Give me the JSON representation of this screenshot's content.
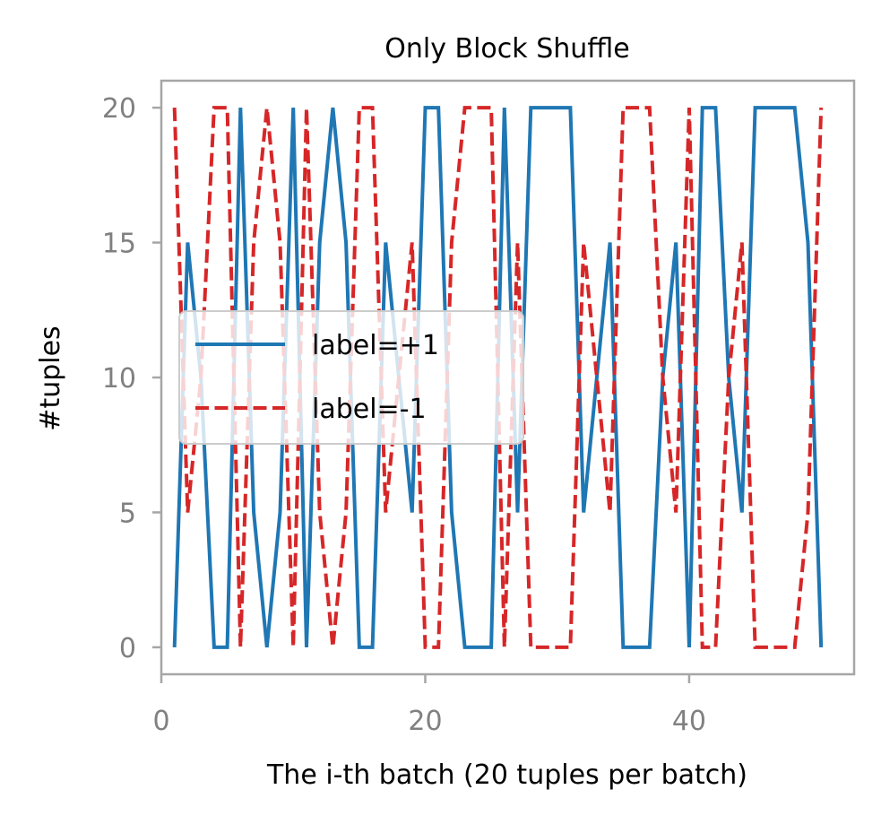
{
  "chart_data": {
    "type": "line",
    "title": "Only Block Shuffle",
    "xlabel": "The i-th batch (20 tuples per batch)",
    "ylabel": "#tuples",
    "xlim": [
      0,
      52.5
    ],
    "ylim": [
      -1,
      21
    ],
    "xticks": [
      0,
      20,
      40
    ],
    "yticks": [
      0,
      5,
      10,
      15,
      20
    ],
    "grid": false,
    "legend_position": "center-left",
    "x": [
      1,
      2,
      3,
      4,
      5,
      6,
      7,
      8,
      9,
      10,
      11,
      12,
      13,
      14,
      15,
      16,
      17,
      18,
      19,
      20,
      21,
      22,
      23,
      24,
      25,
      26,
      27,
      28,
      29,
      30,
      31,
      32,
      33,
      34,
      35,
      36,
      37,
      38,
      39,
      40,
      41,
      42,
      43,
      44,
      45,
      46,
      47,
      48,
      49,
      50
    ],
    "series": [
      {
        "name": "label=+1",
        "color": "#1f77b4",
        "dash": "solid",
        "values": [
          0,
          15,
          10,
          0,
          0,
          20,
          5,
          0,
          5,
          20,
          0,
          15,
          20,
          15,
          0,
          0,
          15,
          10,
          5,
          20,
          20,
          5,
          0,
          0,
          0,
          20,
          5,
          20,
          20,
          20,
          20,
          5,
          10,
          15,
          0,
          0,
          0,
          10,
          15,
          0,
          20,
          20,
          10,
          5,
          20,
          20,
          20,
          20,
          15,
          0
        ]
      },
      {
        "name": "label=-1",
        "color": "#d62728",
        "dash": "dashed",
        "values": [
          20,
          5,
          10,
          20,
          20,
          0,
          15,
          20,
          15,
          0,
          20,
          5,
          0,
          5,
          20,
          20,
          5,
          10,
          15,
          0,
          0,
          15,
          20,
          20,
          20,
          0,
          15,
          0,
          0,
          0,
          0,
          15,
          10,
          5,
          20,
          20,
          20,
          10,
          5,
          20,
          0,
          0,
          10,
          15,
          0,
          0,
          0,
          0,
          5,
          20
        ]
      }
    ]
  }
}
